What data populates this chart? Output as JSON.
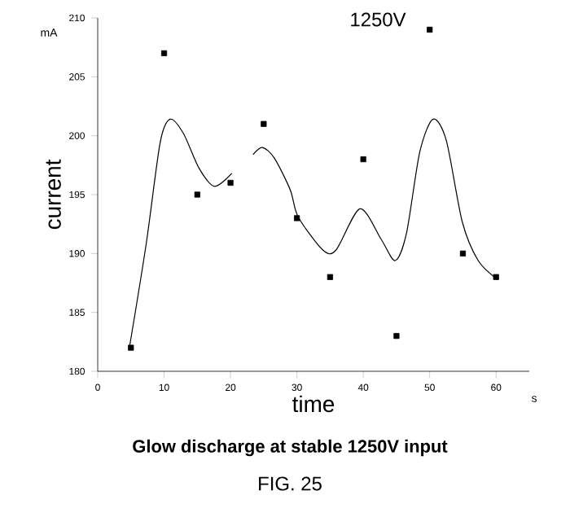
{
  "chart_data": {
    "type": "scatter",
    "title": "Glow discharge at stable  1250V input",
    "xlabel": "time",
    "ylabel": "current",
    "xlim": [
      0,
      65
    ],
    "xticks": [
      0,
      10,
      20,
      30,
      40,
      50,
      60
    ],
    "ylim": [
      180,
      210
    ],
    "yticks": [
      180,
      185,
      190,
      195,
      200,
      205,
      210
    ],
    "annotations": [
      "mA",
      "s",
      "1250V",
      "FIG. 25"
    ],
    "series": [
      {
        "marker": "square",
        "color": "#000000",
        "x": [
          5,
          10,
          15,
          20,
          25,
          30,
          35,
          40,
          45,
          50,
          55,
          60
        ],
        "values": [
          182,
          207,
          195,
          196,
          201,
          193,
          188,
          198,
          183,
          209,
          190,
          188
        ]
      },
      {
        "type": "line",
        "marker": "none",
        "line_style": "solid",
        "color": "#000000",
        "x": [
          4.8,
          7.3,
          9.4,
          10.9,
          12.9,
          15.3,
          17.6,
          20.2,
          22,
          23.4,
          24.8,
          26.6,
          29,
          30.2,
          33.9,
          35.9,
          39.5,
          42.7,
          44.8,
          46.5,
          48.5,
          50.5,
          52.5,
          54.9,
          57.3,
          60.2
        ],
        "values": [
          182.1,
          190.8,
          199.4,
          201.4,
          200.2,
          197.2,
          195.7,
          196.8,
          null,
          198.4,
          199.0,
          198.1,
          195.4,
          193.1,
          190.3,
          190.3,
          193.8,
          191.2,
          189.4,
          191.7,
          198.6,
          201.4,
          199.6,
          192.7,
          189.4,
          187.8
        ]
      }
    ]
  }
}
